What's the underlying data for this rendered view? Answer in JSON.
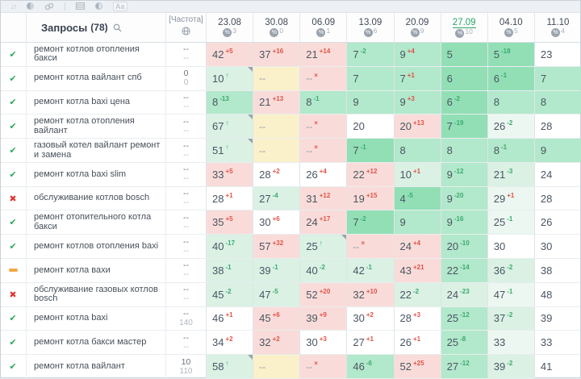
{
  "toolbar": {
    "sort_glyph": "↓↑",
    "aa_label": "Aa",
    "icons": [
      "sort-icon",
      "contrast-circle-icon",
      "link-icon",
      "grid-icon",
      "half-circle-icon",
      "font-size-icon"
    ]
  },
  "header": {
    "queries_label": "Запросы",
    "queries_count": "(78)",
    "frequency_label": "[Частота]",
    "percent_glyph": "%",
    "dates": [
      {
        "d": "23.08",
        "n": "3",
        "sel": false
      },
      {
        "d": "30.08",
        "n": "0",
        "sel": false
      },
      {
        "d": "06.09",
        "n": "1",
        "sel": false
      },
      {
        "d": "13.09",
        "n": "6",
        "sel": false
      },
      {
        "d": "20.09",
        "n": "9",
        "sel": false
      },
      {
        "d": "27.09",
        "n": "10",
        "sel": true
      },
      {
        "d": "04.10",
        "n": "5",
        "sel": false
      },
      {
        "d": "11.10",
        "n": "4",
        "sel": false
      }
    ]
  },
  "status_glyphs": {
    "ok": "✔",
    "fail": "✖"
  },
  "rows": [
    {
      "st": "ok",
      "q": "ремонт котлов отопления бакси",
      "f": [
        "--",
        "--"
      ],
      "c": [
        [
          "42",
          "+5",
          "r",
          "p"
        ],
        [
          "37",
          "+16",
          "r",
          "p"
        ],
        [
          "21",
          "+14",
          "r",
          "p"
        ],
        [
          "7",
          "-2",
          "g",
          "g"
        ],
        [
          "9",
          "+4",
          "r",
          "g"
        ],
        [
          "5",
          "",
          "",
          "d"
        ],
        [
          "5",
          "-18",
          "g",
          "d"
        ],
        [
          "23",
          "",
          "",
          "w"
        ]
      ]
    },
    {
      "st": "ok",
      "q": "ремонт котла вайлант спб",
      "f": [
        "0",
        "0"
      ],
      "c": [
        [
          "10",
          "↑",
          "g",
          "m",
          1
        ],
        [
          "--",
          "",
          "",
          "y"
        ],
        [
          "--",
          "×",
          "r",
          "p"
        ],
        [
          "7",
          "",
          "",
          "g"
        ],
        [
          "7",
          "+1",
          "r",
          "g"
        ],
        [
          "6",
          "",
          "",
          "d"
        ],
        [
          "6",
          "-1",
          "g",
          "d"
        ],
        [
          "7",
          "",
          "",
          "g"
        ]
      ]
    },
    {
      "st": "ok",
      "q": "ремонт котла baxi цена",
      "f": [
        "--",
        "--"
      ],
      "c": [
        [
          "8",
          "-13",
          "g",
          "g"
        ],
        [
          "21",
          "+13",
          "r",
          "p"
        ],
        [
          "8",
          "-1",
          "g",
          "g"
        ],
        [
          "9",
          "",
          "",
          "g"
        ],
        [
          "9",
          "+3",
          "r",
          "g"
        ],
        [
          "6",
          "-2",
          "g",
          "d"
        ],
        [
          "8",
          "",
          "",
          "g"
        ],
        [
          "8",
          "",
          "",
          "g"
        ]
      ]
    },
    {
      "st": "ok",
      "q": "ремонт котла отопления вайлант",
      "f": [
        "--",
        "--"
      ],
      "c": [
        [
          "67",
          "↑",
          "g",
          "m",
          1
        ],
        [
          "--",
          "",
          "",
          "y"
        ],
        [
          "--",
          "×",
          "r",
          "p"
        ],
        [
          "20",
          "",
          "",
          "w"
        ],
        [
          "20",
          "+13",
          "r",
          "p"
        ],
        [
          "7",
          "-19",
          "g",
          "d"
        ],
        [
          "26",
          "-2",
          "g",
          "e"
        ],
        [
          "28",
          "",
          "",
          "w"
        ]
      ]
    },
    {
      "st": "ok",
      "q": "газовый котел вайлант ремонт и замена",
      "f": [
        "--",
        "--"
      ],
      "c": [
        [
          "51",
          "↑",
          "g",
          "m",
          1
        ],
        [
          "--",
          "",
          "",
          "y"
        ],
        [
          "--",
          "×",
          "r",
          "p"
        ],
        [
          "7",
          "-1",
          "g",
          "d"
        ],
        [
          "8",
          "",
          "",
          "g"
        ],
        [
          "8",
          "",
          "",
          "g"
        ],
        [
          "8",
          "-1",
          "g",
          "g"
        ],
        [
          "9",
          "",
          "",
          "g"
        ]
      ]
    },
    {
      "st": "ok",
      "q": "ремонт котла baxi slim",
      "f": [
        "--",
        "--"
      ],
      "c": [
        [
          "33",
          "+5",
          "r",
          "p"
        ],
        [
          "28",
          "+2",
          "r",
          "w"
        ],
        [
          "26",
          "+4",
          "r",
          "w"
        ],
        [
          "22",
          "+12",
          "r",
          "p"
        ],
        [
          "10",
          "+1",
          "r",
          "m"
        ],
        [
          "9",
          "-12",
          "g",
          "g"
        ],
        [
          "21",
          "-3",
          "g",
          "m"
        ],
        [
          "24",
          "",
          "",
          "w"
        ]
      ]
    },
    {
      "st": "fail",
      "q": "обслуживание котлов bosch",
      "f": [
        "--",
        "--"
      ],
      "c": [
        [
          "28",
          "+1",
          "r",
          "w"
        ],
        [
          "27",
          "-4",
          "g",
          "m"
        ],
        [
          "31",
          "+12",
          "r",
          "p"
        ],
        [
          "19",
          "+15",
          "r",
          "p"
        ],
        [
          "4",
          "-5",
          "g",
          "d"
        ],
        [
          "9",
          "-20",
          "g",
          "g"
        ],
        [
          "29",
          "+1",
          "r",
          "e"
        ],
        [
          "28",
          "",
          "",
          "w"
        ]
      ]
    },
    {
      "st": "ok",
      "q": "ремонт отопительного котла бакси",
      "f": [
        "--",
        "--"
      ],
      "c": [
        [
          "35",
          "+5",
          "r",
          "p"
        ],
        [
          "30",
          "+6",
          "r",
          "w"
        ],
        [
          "24",
          "+17",
          "r",
          "p"
        ],
        [
          "7",
          "-2",
          "g",
          "d"
        ],
        [
          "9",
          "",
          "",
          "g"
        ],
        [
          "9",
          "-16",
          "g",
          "g"
        ],
        [
          "25",
          "-1",
          "g",
          "e"
        ],
        [
          "26",
          "",
          "",
          "w"
        ]
      ]
    },
    {
      "st": "ok",
      "q": "ремонт котлов отопления baxi",
      "f": [
        "--",
        "--"
      ],
      "c": [
        [
          "40",
          "-17",
          "g",
          "m"
        ],
        [
          "57",
          "+32",
          "r",
          "p"
        ],
        [
          "25",
          "↑",
          "g",
          "m",
          1
        ],
        [
          "--",
          "×",
          "r",
          "p"
        ],
        [
          "24",
          "+4",
          "r",
          "p"
        ],
        [
          "20",
          "-10",
          "g",
          "g"
        ],
        [
          "30",
          "",
          "",
          "w"
        ],
        [
          "30",
          "",
          "",
          "w"
        ]
      ]
    },
    {
      "st": "pause",
      "q": "ремонт котла вахи",
      "f": [
        "--",
        "--"
      ],
      "c": [
        [
          "38",
          "-1",
          "g",
          "m"
        ],
        [
          "39",
          "-1",
          "g",
          "m"
        ],
        [
          "40",
          "-2",
          "g",
          "m"
        ],
        [
          "42",
          "-1",
          "g",
          "m"
        ],
        [
          "43",
          "+21",
          "r",
          "p"
        ],
        [
          "22",
          "-14",
          "g",
          "g"
        ],
        [
          "36",
          "-2",
          "g",
          "m"
        ],
        [
          "38",
          "",
          "",
          "w"
        ]
      ]
    },
    {
      "st": "fail",
      "q": "обслуживание газовых котлов bosch",
      "f": [
        "--",
        "--"
      ],
      "c": [
        [
          "45",
          "-2",
          "g",
          "m"
        ],
        [
          "47",
          "-5",
          "g",
          "m"
        ],
        [
          "52",
          "+20",
          "r",
          "p"
        ],
        [
          "32",
          "+10",
          "r",
          "p"
        ],
        [
          "22",
          "-2",
          "g",
          "m"
        ],
        [
          "24",
          "-23",
          "g",
          "m"
        ],
        [
          "47",
          "-1",
          "g",
          "e"
        ],
        [
          "48",
          "",
          "",
          "w"
        ]
      ]
    },
    {
      "st": "ok",
      "q": "ремонт котла baxi",
      "f": [
        "--",
        "140"
      ],
      "c": [
        [
          "46",
          "+1",
          "r",
          "w"
        ],
        [
          "45",
          "+6",
          "r",
          "p"
        ],
        [
          "39",
          "+9",
          "r",
          "p"
        ],
        [
          "30",
          "+2",
          "r",
          "w"
        ],
        [
          "28",
          "+3",
          "r",
          "w"
        ],
        [
          "25",
          "-12",
          "g",
          "g"
        ],
        [
          "37",
          "-2",
          "g",
          "m"
        ],
        [
          "39",
          "",
          "",
          "w"
        ]
      ]
    },
    {
      "st": "ok",
      "q": "ремонт котла бакси мастер",
      "f": [
        "--",
        "--"
      ],
      "c": [
        [
          "34",
          "+2",
          "r",
          "w"
        ],
        [
          "32",
          "+2",
          "r",
          "p"
        ],
        [
          "30",
          "+3",
          "r",
          "w"
        ],
        [
          "27",
          "+1",
          "r",
          "w"
        ],
        [
          "26",
          "+1",
          "r",
          "w"
        ],
        [
          "25",
          "-8",
          "g",
          "g"
        ],
        [
          "33",
          "",
          "",
          "e"
        ],
        [
          "33",
          "",
          "",
          "w"
        ]
      ]
    },
    {
      "st": "ok",
      "q": "ремонт котла вайлант",
      "f": [
        "10",
        "110"
      ],
      "c": [
        [
          "58",
          "↑",
          "g",
          "m",
          1
        ],
        [
          "--",
          "",
          "",
          "y"
        ],
        [
          "--",
          "×",
          "r",
          "p"
        ],
        [
          "46",
          "-6",
          "g",
          "g"
        ],
        [
          "52",
          "+25",
          "r",
          "p"
        ],
        [
          "27",
          "-12",
          "g",
          "g"
        ],
        [
          "39",
          "-2",
          "g",
          "m"
        ],
        [
          "41",
          "",
          "",
          "w"
        ]
      ]
    }
  ],
  "colors": {
    "accent_green": "#2aa565",
    "sup_red": "#e05247",
    "sup_green": "#3aaa6e",
    "bg_pink": "#f9dcd9",
    "bg_yellow": "#faf1cb",
    "bg_mint": "#daf1e4",
    "bg_green": "#b2e8cb",
    "bg_dark_green": "#92dfb6",
    "bg_pale_green": "#ecf7f1",
    "status_ok": "#2ea75c",
    "status_fail": "#dd382d",
    "status_pause": "#f0a845"
  }
}
